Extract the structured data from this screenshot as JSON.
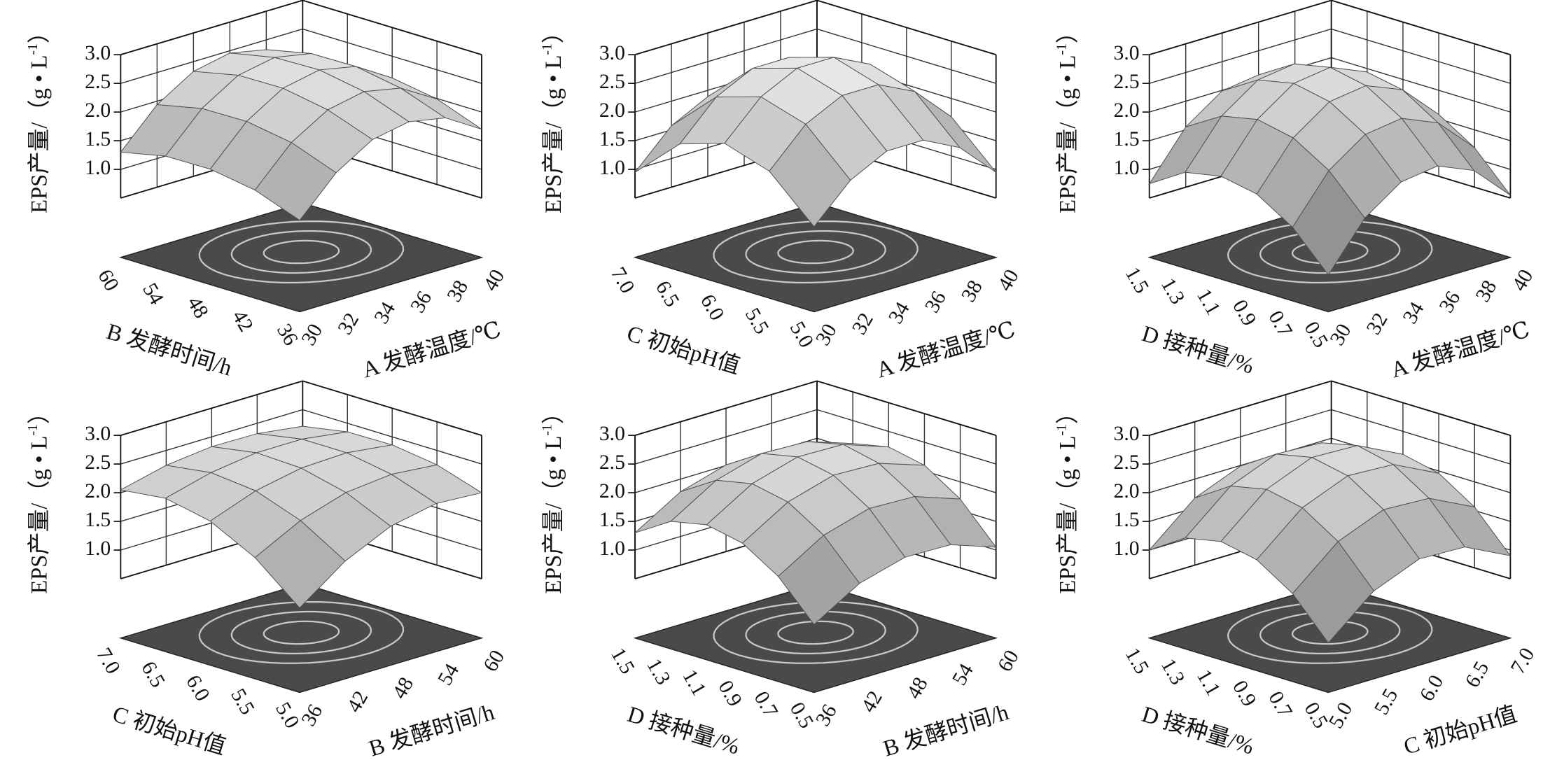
{
  "chart_data": [
    {
      "type": "surface",
      "xlabel": "A 发酵温度/℃",
      "ylabel": "B 发酵时间/h",
      "zlabel": "EPS产量/（g • L",
      "zlabel_exponent": "-1",
      "zlabel_close": "）",
      "xlim": [
        30,
        40
      ],
      "xticks": [
        30,
        32,
        34,
        36,
        38,
        40
      ],
      "ylim": [
        36,
        60
      ],
      "yticks": [
        36,
        42,
        48,
        54,
        60
      ],
      "zlim": [
        0.5,
        3
      ],
      "zticks": [
        {
          "value": 1,
          "label": "1.0"
        },
        1.5,
        {
          "value": 2,
          "label": "2.0"
        },
        2.5,
        {
          "value": 3,
          "label": "3.0"
        }
      ],
      "z": [
        [
          1.06,
          1.7,
          2.09,
          2.21,
          2.09,
          1.7
        ],
        [
          1.35,
          1.99,
          2.37,
          2.5,
          2.37,
          1.99
        ],
        [
          1.48,
          2.12,
          2.51,
          2.64,
          2.51,
          2.12
        ],
        [
          1.47,
          2.11,
          2.5,
          2.62,
          2.5,
          2.11
        ],
        [
          1.3,
          1.94,
          2.33,
          2.46,
          2.33,
          1.94
        ]
      ],
      "grid": true,
      "surface_color": "#f2f2f2",
      "mesh_color": "#505050",
      "floor_color": "#4a4a4a",
      "contour_color": "#c8c8c8"
    },
    {
      "type": "surface",
      "xlabel": "A 发酵温度/℃",
      "ylabel": "C 初始pH值",
      "zlabel": "EPS产量/（g • L",
      "zlabel_exponent": "-1",
      "zlabel_close": "）",
      "xlim": [
        30,
        40
      ],
      "xticks": [
        30,
        32,
        34,
        36,
        38,
        40
      ],
      "ylim": [
        5,
        7
      ],
      "yticks": [
        {
          "value": 5,
          "label": "5.0"
        },
        5.5,
        {
          "value": 6,
          "label": "6.0"
        },
        6.5,
        {
          "value": 7,
          "label": "7.0"
        }
      ],
      "zlim": [
        0.5,
        3
      ],
      "zticks": [
        {
          "value": 1,
          "label": "1.0"
        },
        1.5,
        {
          "value": 2,
          "label": "2.0"
        },
        2.5,
        {
          "value": 3,
          "label": "3.0"
        }
      ],
      "z": [
        [
          0.95,
          1.57,
          1.89,
          1.89,
          1.57,
          0.95
        ],
        [
          1.68,
          2.31,
          2.62,
          2.62,
          2.31,
          1.68
        ],
        [
          1.93,
          2.55,
          2.86,
          2.86,
          2.55,
          1.93
        ],
        [
          1.68,
          2.31,
          2.62,
          2.62,
          2.31,
          1.68
        ],
        [
          0.95,
          1.57,
          1.89,
          1.89,
          1.57,
          0.95
        ]
      ],
      "grid": true,
      "surface_color": "#f2f2f2",
      "mesh_color": "#505050",
      "floor_color": "#4a4a4a",
      "contour_color": "#c8c8c8"
    },
    {
      "type": "surface",
      "xlabel": "A 发酵温度/℃",
      "ylabel": "D 接种量/%",
      "zlabel": "EPS产量/（g • L",
      "zlabel_exponent": "-1",
      "zlabel_close": "）",
      "xlim": [
        30,
        40
      ],
      "xticks": [
        30,
        32,
        34,
        36,
        38,
        40
      ],
      "ylim": [
        0.5,
        1.5
      ],
      "yticks": [
        0.5,
        0.7,
        0.9,
        1.1,
        1.3,
        1.5
      ],
      "zlim": [
        0.5,
        3
      ],
      "zticks": [
        {
          "value": 1,
          "label": "1.0"
        },
        1.5,
        {
          "value": 2,
          "label": "2.0"
        },
        2.5,
        {
          "value": 3,
          "label": "3.0"
        }
      ],
      "z": [
        [
          0.11,
          0.91,
          1.35,
          1.44,
          1.17,
          0.55
        ],
        [
          0.75,
          1.55,
          1.99,
          2.08,
          1.81,
          1.19
        ],
        [
          1.14,
          1.93,
          2.37,
          2.46,
          2.2,
          1.58
        ],
        [
          1.26,
          2.06,
          2.5,
          2.59,
          2.32,
          1.71
        ],
        [
          1.14,
          1.93,
          2.37,
          2.46,
          2.2,
          1.58
        ],
        [
          0.75,
          1.55,
          1.99,
          2.08,
          1.81,
          1.19
        ]
      ],
      "grid": true,
      "surface_color": "#f2f2f2",
      "mesh_color": "#505050",
      "floor_color": "#4a4a4a",
      "contour_color": "#c8c8c8"
    },
    {
      "type": "surface",
      "xlabel": "B 发酵时间/h",
      "ylabel": "C 初始pH值",
      "zlabel": "EPS产量/（g • L",
      "zlabel_exponent": "-1",
      "zlabel_close": "）",
      "xlim": [
        36,
        60
      ],
      "xticks": [
        36,
        42,
        48,
        54,
        60
      ],
      "ylim": [
        5,
        7
      ],
      "yticks": [
        {
          "value": 5,
          "label": "5.0"
        },
        5.5,
        {
          "value": 6,
          "label": "6.0"
        },
        6.5,
        {
          "value": 7,
          "label": "7.0"
        }
      ],
      "zlim": [
        0.5,
        3
      ],
      "zticks": [
        {
          "value": 1,
          "label": "1.0"
        },
        1.5,
        {
          "value": 2,
          "label": "2.0"
        },
        2.5,
        {
          "value": 3,
          "label": "3.0"
        }
      ],
      "z": [
        [
          0.94,
          1.52,
          1.89,
          2.05,
          2.0
        ],
        [
          1.58,
          1.99,
          2.24,
          2.32,
          2.25
        ],
        [
          1.98,
          2.27,
          2.43,
          2.46,
          2.36
        ],
        [
          2.14,
          2.35,
          2.46,
          2.46,
          2.35
        ],
        [
          2.05,
          2.24,
          2.33,
          2.32,
          2.21
        ]
      ],
      "grid": true,
      "surface_color": "#f2f2f2",
      "mesh_color": "#505050",
      "floor_color": "#4a4a4a",
      "contour_color": "#c8c8c8"
    },
    {
      "type": "surface",
      "xlabel": "B 发酵时间/h",
      "ylabel": "D 接种量/%",
      "zlabel": "EPS产量/（g • L",
      "zlabel_exponent": "-1",
      "zlabel_close": "）",
      "xlim": [
        36,
        60
      ],
      "xticks": [
        36,
        42,
        48,
        54,
        60
      ],
      "ylim": [
        0.5,
        1.5
      ],
      "yticks": [
        0.5,
        0.7,
        0.9,
        1.1,
        1.3,
        1.5
      ],
      "zlim": [
        0.5,
        3
      ],
      "zticks": [
        {
          "value": 1,
          "label": "1.0"
        },
        1.5,
        {
          "value": 2,
          "label": "2.0"
        },
        2.5,
        {
          "value": 3,
          "label": "3.0"
        }
      ],
      "z": [
        [
          0.65,
          1.13,
          1.35,
          1.33,
          1.05
        ],
        [
          1.3,
          1.78,
          2.01,
          1.98,
          1.7
        ],
        [
          1.69,
          2.17,
          2.4,
          2.37,
          2.1
        ],
        [
          1.82,
          2.3,
          2.53,
          2.51,
          2.23
        ],
        [
          1.69,
          2.17,
          2.4,
          2.37,
          2.1
        ],
        [
          1.3,
          1.78,
          2.01,
          1.98,
          1.7
        ]
      ],
      "grid": true,
      "surface_color": "#f2f2f2",
      "mesh_color": "#505050",
      "floor_color": "#4a4a4a",
      "contour_color": "#c8c8c8"
    },
    {
      "type": "surface",
      "xlabel": "C 初始pH值",
      "ylabel": "D 接种量/%",
      "zlabel": "EPS产量/（g • L",
      "zlabel_exponent": "-1",
      "zlabel_close": "）",
      "xlim": [
        5,
        7
      ],
      "xticks": [
        {
          "value": 5,
          "label": "5.0"
        },
        5.5,
        {
          "value": 6,
          "label": "6.0"
        },
        6.5,
        {
          "value": 7,
          "label": "7.0"
        }
      ],
      "ylim": [
        0.5,
        1.5
      ],
      "yticks": [
        0.5,
        0.7,
        0.9,
        1.1,
        1.3,
        1.5
      ],
      "zlim": [
        0.5,
        3
      ],
      "zticks": [
        {
          "value": 1,
          "label": "1.0"
        },
        1.5,
        {
          "value": 2,
          "label": "2.0"
        },
        2.5,
        {
          "value": 3,
          "label": "3.0"
        }
      ],
      "z": [
        [
          0.33,
          1.0,
          1.32,
          1.29,
          0.9
        ],
        [
          1.0,
          1.67,
          1.99,
          1.95,
          1.56
        ],
        [
          1.4,
          2.07,
          2.39,
          2.35,
          1.96
        ],
        [
          1.53,
          2.2,
          2.52,
          2.49,
          2.1
        ],
        [
          1.4,
          2.07,
          2.39,
          2.35,
          1.96
        ],
        [
          1.0,
          1.67,
          1.99,
          1.95,
          1.56
        ]
      ],
      "grid": true,
      "surface_color": "#f2f2f2",
      "mesh_color": "#505050",
      "floor_color": "#4a4a4a",
      "contour_color": "#c8c8c8"
    }
  ]
}
